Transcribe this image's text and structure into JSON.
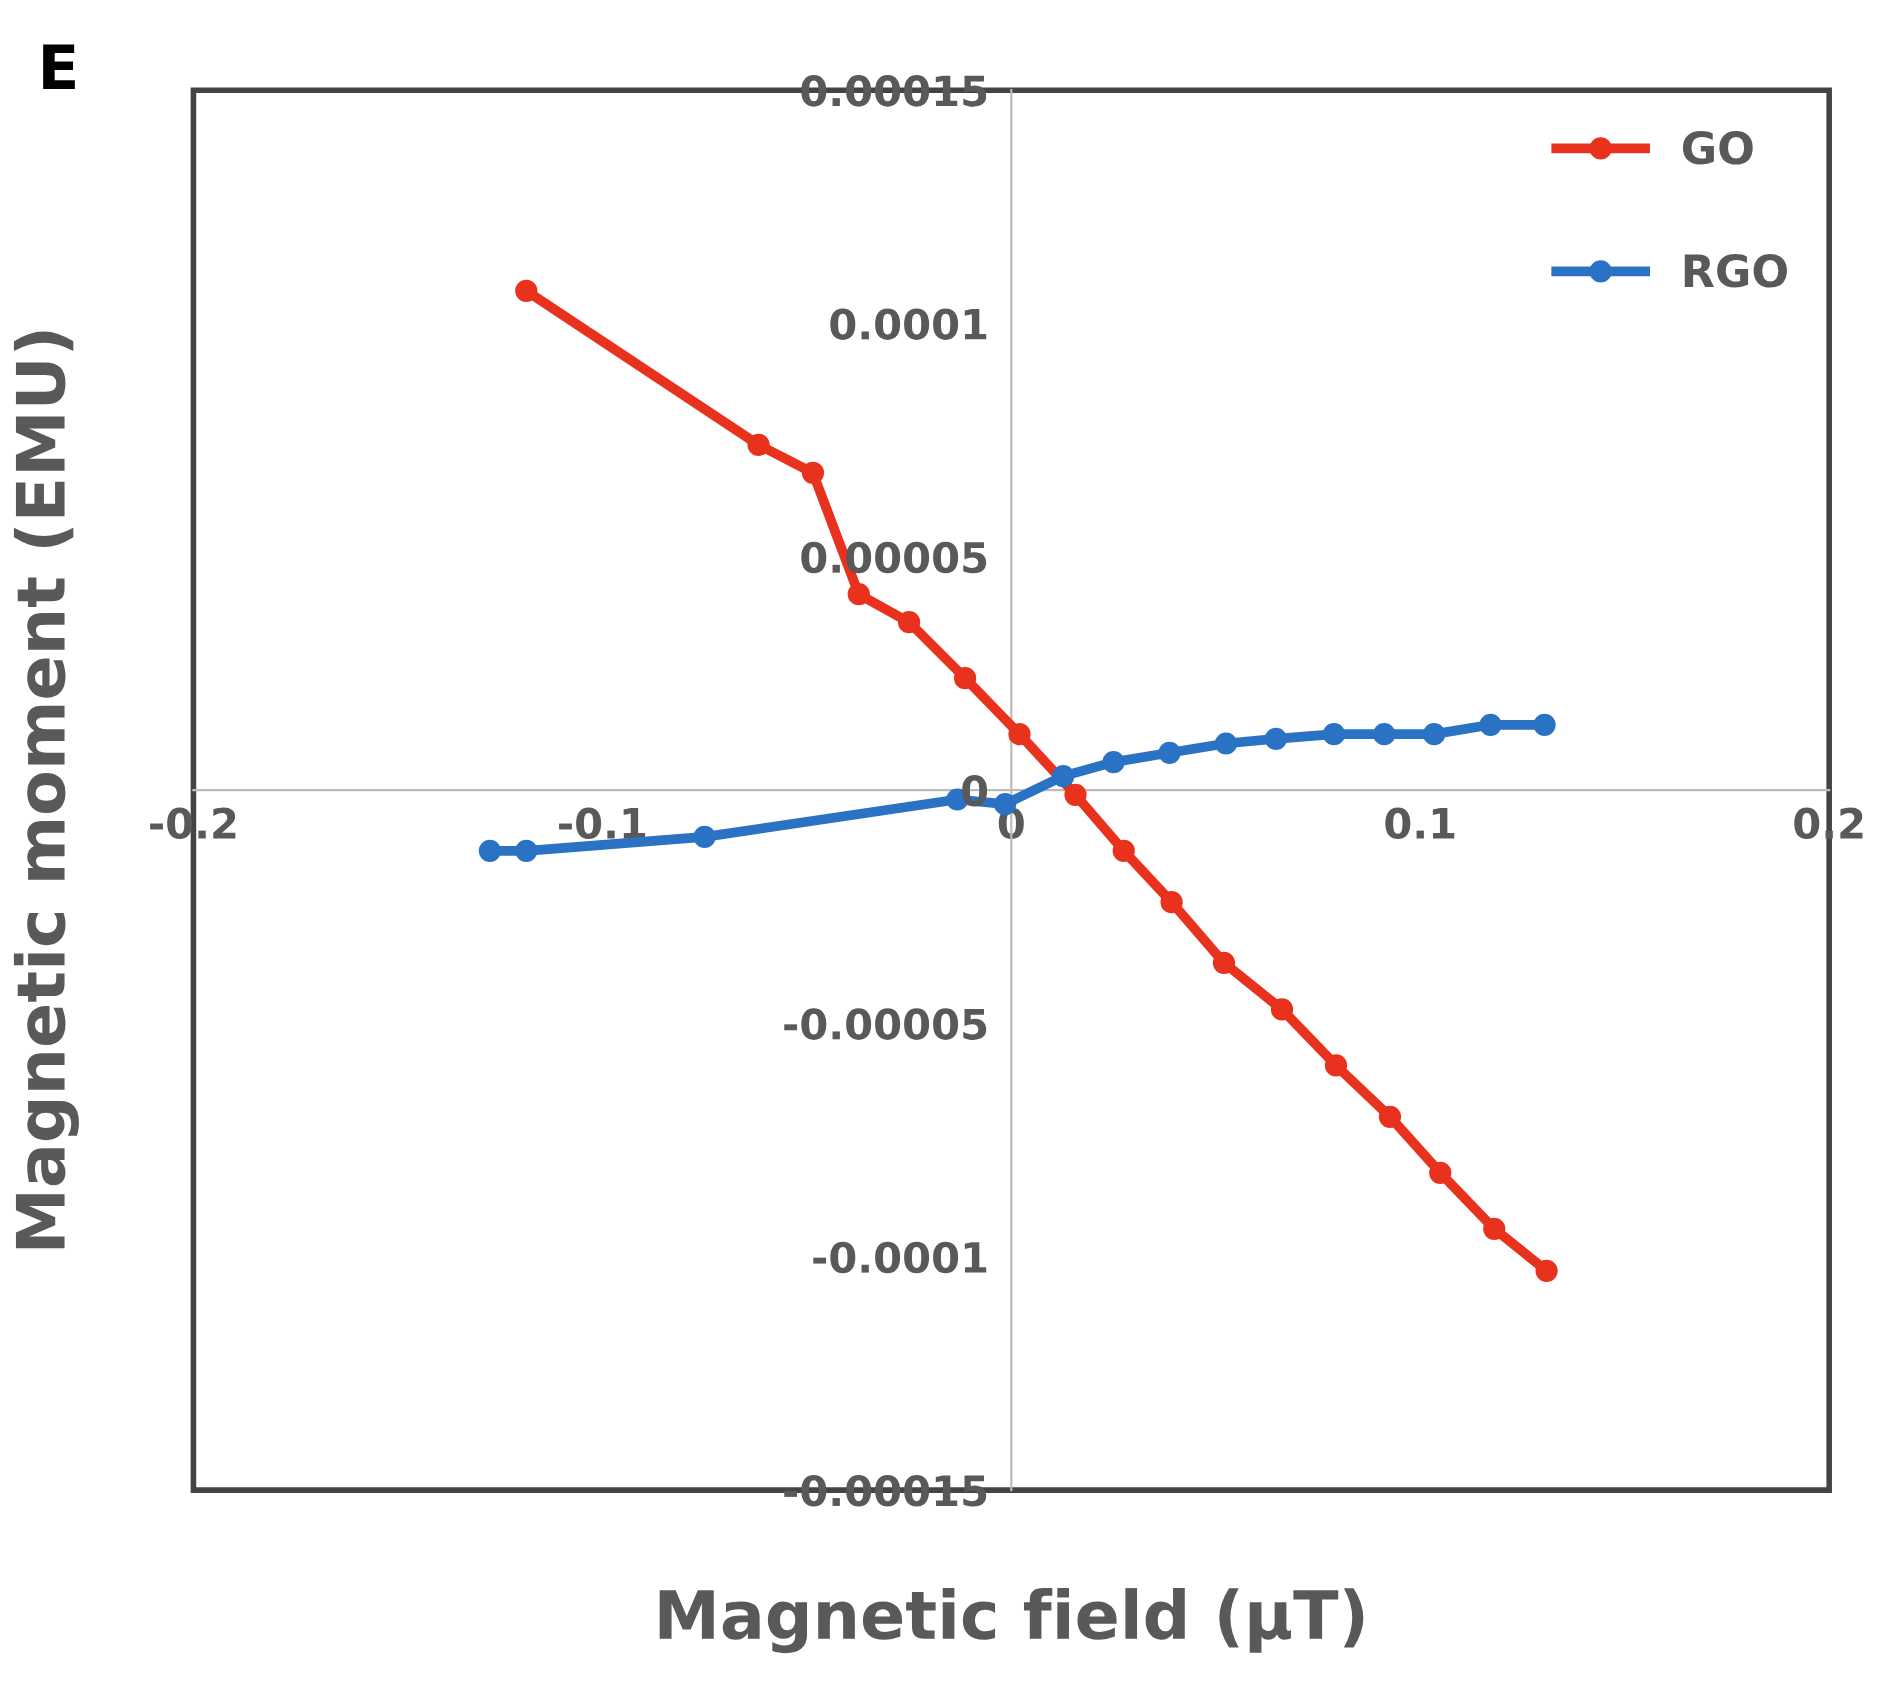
{
  "chart_data": {
    "type": "line",
    "title": "E",
    "xlabel": "Magnetic field (µT)",
    "ylabel": "Magnetic moment (EMU)",
    "xlim": [
      -0.2,
      0.2
    ],
    "xticks": [
      -0.2,
      -0.1,
      0,
      0.1,
      0.2
    ],
    "ylim": [
      -0.00015,
      0.00015
    ],
    "yticks": [
      {
        "value": -0.00015,
        "label": "-0.00015"
      },
      {
        "value": -0.0001,
        "label": "-0.0001"
      },
      {
        "value": -5e-05,
        "label": "-0.00005"
      },
      {
        "value": 0,
        "label": "0"
      },
      {
        "value": 5e-05,
        "label": "0.00005"
      },
      {
        "value": 0.0001,
        "label": "0.0001"
      },
      {
        "value": 0.00015,
        "label": "0.00015"
      }
    ],
    "grid": false,
    "legend": "top right",
    "marker": "circle",
    "line_style": "solid",
    "series": [
      {
        "name": "GO",
        "color": "#e8321e",
        "x": [
          -0.1186,
          -0.0618,
          -0.0485,
          -0.0373,
          -0.025,
          -0.0113,
          0.002,
          0.0157,
          0.0275,
          0.0392,
          0.052,
          0.0662,
          0.0794,
          0.0926,
          0.1049,
          0.1181,
          0.1309
        ],
        "values": [
          0.000107,
          7.4e-05,
          6.8e-05,
          4.2e-05,
          3.6e-05,
          2.4e-05,
          1.2e-05,
          -1e-06,
          -1.3e-05,
          -2.4e-05,
          -3.7e-05,
          -4.7e-05,
          -5.9e-05,
          -7e-05,
          -8.2e-05,
          -9.4e-05,
          -0.000103
        ]
      },
      {
        "name": "RGO",
        "color": "#2a72c4",
        "x": [
          -0.1275,
          -0.1186,
          -0.075,
          -0.0132,
          -0.0015,
          0.0127,
          0.025,
          0.0387,
          0.0525,
          0.0647,
          0.0789,
          0.0912,
          0.1034,
          0.1172,
          0.1304
        ],
        "values": [
          -1.3e-05,
          -1.3e-05,
          -1e-05,
          -2e-06,
          -3e-06,
          3e-06,
          6e-06,
          8e-06,
          1e-05,
          1.1e-05,
          1.2e-05,
          1.2e-05,
          1.2e-05,
          1.4e-05,
          1.4e-05
        ]
      }
    ]
  }
}
